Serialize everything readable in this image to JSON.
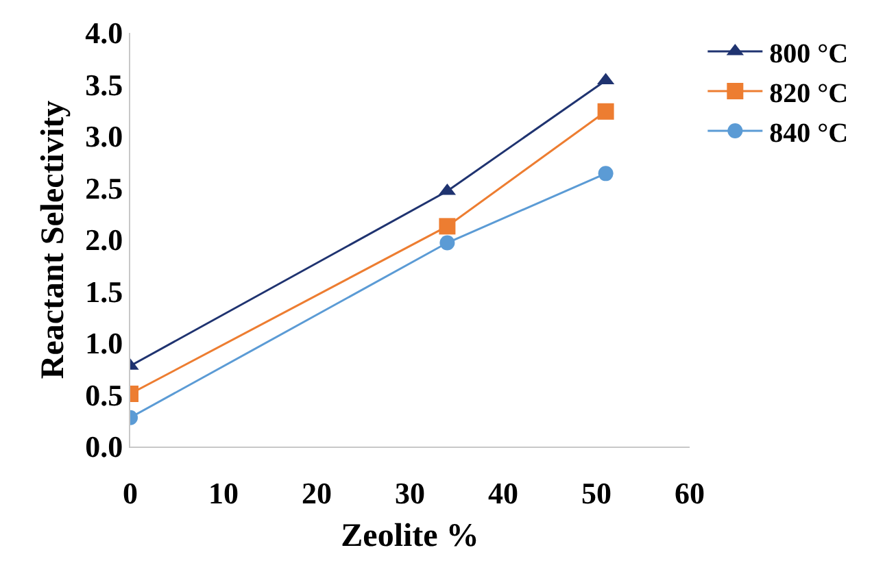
{
  "chart_data": {
    "type": "line",
    "xlabel": "Zeolite %",
    "ylabel": "Reactant Selectivity",
    "x": [
      0,
      34,
      51
    ],
    "series": [
      {
        "name": "800 °C",
        "color": "#1f3370",
        "marker": "triangle",
        "values": [
          0.78,
          2.47,
          3.54
        ]
      },
      {
        "name": "820 °C",
        "color": "#ed7d31",
        "marker": "square",
        "values": [
          0.51,
          2.13,
          3.24
        ]
      },
      {
        "name": "840 °C",
        "color": "#5b9bd5",
        "marker": "circle",
        "values": [
          0.28,
          1.97,
          2.64
        ]
      }
    ],
    "xlim": [
      0,
      60
    ],
    "xticks": [
      0,
      10,
      20,
      30,
      40,
      50,
      60
    ],
    "ylim": [
      0,
      4
    ],
    "yticks": [
      {
        "value": 0,
        "label": "0.0"
      },
      {
        "value": 0.5,
        "label": "0.5"
      },
      {
        "value": 1,
        "label": "1.0"
      },
      {
        "value": 1.5,
        "label": "1.5"
      },
      {
        "value": 2,
        "label": "2.0"
      },
      {
        "value": 2.5,
        "label": "2.5"
      },
      {
        "value": 3,
        "label": "3.0"
      },
      {
        "value": 3.5,
        "label": "3.5"
      },
      {
        "value": 4,
        "label": "4.0"
      }
    ],
    "grid": false,
    "legend": "top right",
    "line_style": "solid"
  }
}
